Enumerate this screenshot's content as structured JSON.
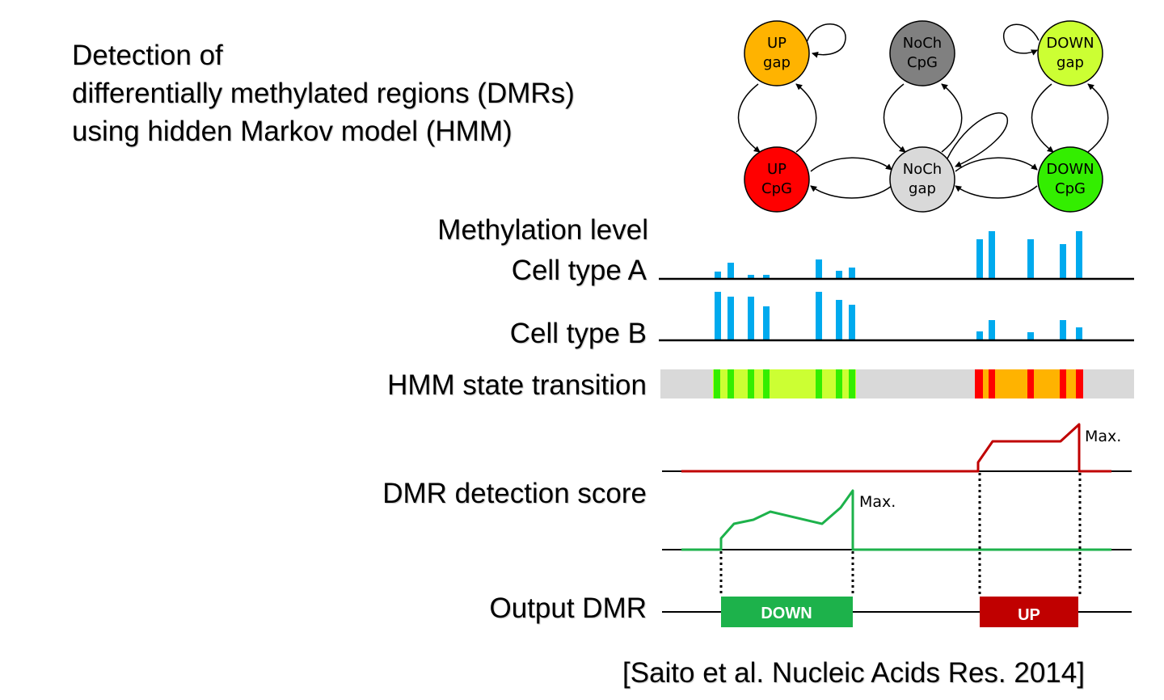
{
  "title_lines": [
    "Detection of",
    "differentially methylated regions (DMRs)",
    "using hidden Markov model (HMM)"
  ],
  "hmm_states": [
    {
      "id": "up-gap",
      "line1": "UP",
      "line2": "gap",
      "color": "#FFB300"
    },
    {
      "id": "noch-cpg",
      "line1": "NoCh",
      "line2": "CpG",
      "color": "#808080"
    },
    {
      "id": "down-gap",
      "line1": "DOWN",
      "line2": "gap",
      "color": "#CCFF33"
    },
    {
      "id": "up-cpg",
      "line1": "UP",
      "line2": "CpG",
      "color": "#FF0000"
    },
    {
      "id": "noch-gap",
      "line1": "NoCh",
      "line2": "gap",
      "color": "#D9D9D9"
    },
    {
      "id": "down-cpg",
      "line1": "DOWN",
      "line2": "CpG",
      "color": "#33EE00"
    }
  ],
  "tracks": {
    "methylation_header": "Methylation level",
    "cell_type_a": "Cell type A",
    "cell_type_b": "Cell type B",
    "hmm_transition": "HMM state transition",
    "dmr_score": "DMR detection score",
    "output_dmr": "Output DMR"
  },
  "score_max_label": "Max.",
  "output_regions": [
    {
      "label": "DOWN",
      "color": "#1DB24B"
    },
    {
      "label": "UP",
      "color": "#C00000"
    }
  ],
  "colors": {
    "bar": "#00AAEE",
    "up_score_line": "#C00000",
    "down_score_line": "#1DB24B",
    "hmm_background": "#D9D9D9"
  },
  "citation": "[Saito et al. Nucleic Acids Res. 2014]"
}
